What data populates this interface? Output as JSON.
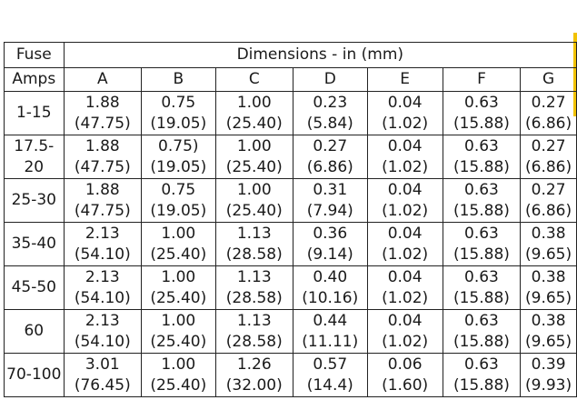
{
  "header": {
    "fuse_line1": "Fuse",
    "fuse_line2": "Amps",
    "dimensions": "Dimensions - in (mm)",
    "columns": [
      "A",
      "B",
      "C",
      "D",
      "E",
      "F",
      "G"
    ]
  },
  "rows": [
    {
      "amps": "1-15",
      "cells": [
        [
          "1.88",
          "(47.75)"
        ],
        [
          "0.75",
          "(19.05)"
        ],
        [
          "1.00",
          "(25.40)"
        ],
        [
          "0.23",
          "(5.84)"
        ],
        [
          "0.04",
          "(1.02)"
        ],
        [
          "0.63",
          "(15.88)"
        ],
        [
          "0.27",
          "(6.86)"
        ]
      ]
    },
    {
      "amps": "17.5-20",
      "cells": [
        [
          "1.88",
          "(47.75)"
        ],
        [
          "0.75)",
          "(19.05)"
        ],
        [
          "1.00",
          "(25.40)"
        ],
        [
          "0.27",
          "(6.86)"
        ],
        [
          "0.04",
          "(1.02)"
        ],
        [
          "0.63",
          "(15.88)"
        ],
        [
          "0.27",
          "(6.86)"
        ]
      ]
    },
    {
      "amps": "25-30",
      "cells": [
        [
          "1.88",
          "(47.75)"
        ],
        [
          "0.75",
          "(19.05)"
        ],
        [
          "1.00",
          "(25.40)"
        ],
        [
          "0.31",
          "(7.94)"
        ],
        [
          "0.04",
          "(1.02)"
        ],
        [
          "0.63",
          "(15.88)"
        ],
        [
          "0.27",
          "(6.86)"
        ]
      ]
    },
    {
      "amps": "35-40",
      "cells": [
        [
          "2.13",
          "(54.10)"
        ],
        [
          "1.00",
          "(25.40)"
        ],
        [
          "1.13",
          "(28.58)"
        ],
        [
          "0.36",
          "(9.14)"
        ],
        [
          "0.04",
          "(1.02)"
        ],
        [
          "0.63",
          "(15.88)"
        ],
        [
          "0.38",
          "(9.65)"
        ]
      ]
    },
    {
      "amps": "45-50",
      "cells": [
        [
          "2.13",
          "(54.10)"
        ],
        [
          "1.00",
          "(25.40)"
        ],
        [
          "1.13",
          "(28.58)"
        ],
        [
          "0.40",
          "(10.16)"
        ],
        [
          "0.04",
          "(1.02)"
        ],
        [
          "0.63",
          "(15.88)"
        ],
        [
          "0.38",
          "(9.65)"
        ]
      ]
    },
    {
      "amps": "60",
      "cells": [
        [
          "2.13",
          "(54.10)"
        ],
        [
          "1.00",
          "(25.40)"
        ],
        [
          "1.13",
          "(28.58)"
        ],
        [
          "0.44",
          "(11.11)"
        ],
        [
          "0.04",
          "(1.02)"
        ],
        [
          "0.63",
          "(15.88)"
        ],
        [
          "0.38",
          "(9.65)"
        ]
      ]
    },
    {
      "amps": "70-100",
      "cells": [
        [
          "3.01",
          "(76.45)"
        ],
        [
          "1.00",
          "(25.40)"
        ],
        [
          "1.26",
          "(32.00)"
        ],
        [
          "0.57",
          "(14.4)"
        ],
        [
          "0.06",
          "(1.60)"
        ],
        [
          "0.63",
          "(15.88)"
        ],
        [
          "0.39",
          "(9.93)"
        ]
      ]
    }
  ],
  "accent_color": "#f2c200"
}
